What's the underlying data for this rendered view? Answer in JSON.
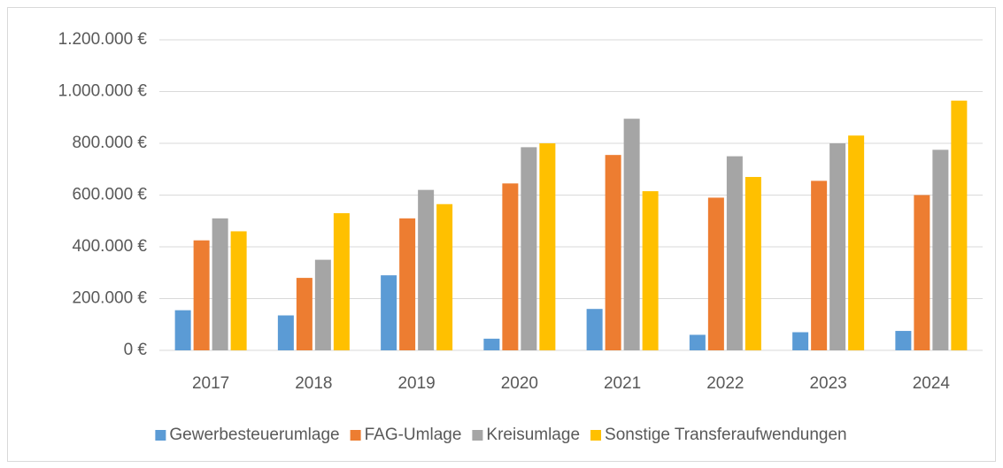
{
  "chart_data": {
    "type": "bar",
    "categories": [
      "2017",
      "2018",
      "2019",
      "2020",
      "2021",
      "2022",
      "2023",
      "2024"
    ],
    "series": [
      {
        "name": "Gewerbesteuerumlage",
        "color": "#5b9bd5",
        "values": [
          155000,
          135000,
          290000,
          45000,
          160000,
          60000,
          70000,
          75000
        ]
      },
      {
        "name": "FAG-Umlage",
        "color": "#ed7d31",
        "values": [
          425000,
          280000,
          510000,
          645000,
          755000,
          590000,
          655000,
          600000
        ]
      },
      {
        "name": "Kreisumlage",
        "color": "#a5a5a5",
        "values": [
          510000,
          350000,
          620000,
          785000,
          895000,
          750000,
          800000,
          775000
        ]
      },
      {
        "name": "Sonstige Transferaufwendungen",
        "color": "#ffc000",
        "values": [
          460000,
          530000,
          565000,
          800000,
          615000,
          670000,
          830000,
          965000
        ]
      }
    ],
    "ylim": [
      0,
      1200000
    ],
    "yticks": [
      {
        "value": 0,
        "label": "0 €"
      },
      {
        "value": 200000,
        "label": "200.000 €"
      },
      {
        "value": 400000,
        "label": "400.000 €"
      },
      {
        "value": 600000,
        "label": "600.000 €"
      },
      {
        "value": 800000,
        "label": "800.000 €"
      },
      {
        "value": 1000000,
        "label": "1.000.000 €"
      },
      {
        "value": 1200000,
        "label": "1.200.000 €"
      }
    ],
    "grid": true,
    "legend": "bottom"
  }
}
